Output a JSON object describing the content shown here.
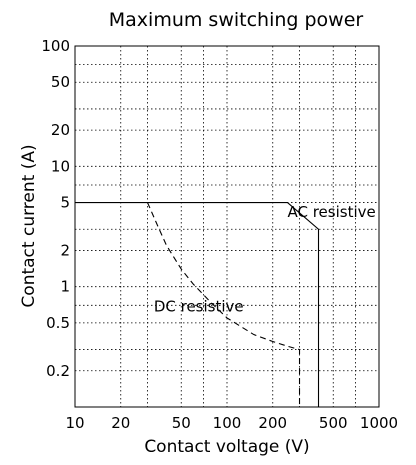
{
  "chart_data": {
    "type": "line",
    "title": "Maximum switching power",
    "xlabel": "Contact voltage (V)",
    "ylabel": "Contact current (A)",
    "xscale": "log",
    "yscale": "log",
    "xlim": [
      10,
      1000
    ],
    "ylim": [
      0.1,
      100
    ],
    "grid": true,
    "x_ticks": [
      {
        "value": 10,
        "label": "10"
      },
      {
        "value": 20,
        "label": "20"
      },
      {
        "value": 50,
        "label": "50"
      },
      {
        "value": 100,
        "label": "100"
      },
      {
        "value": 200,
        "label": "200"
      },
      {
        "value": 500,
        "label": "500"
      },
      {
        "value": 1000,
        "label": "1000"
      }
    ],
    "x_gridlines": [
      20,
      30,
      50,
      70,
      100,
      200,
      300,
      500,
      700
    ],
    "y_ticks": [
      {
        "value": 0.2,
        "label": "0.2"
      },
      {
        "value": 0.5,
        "label": "0.5"
      },
      {
        "value": 1,
        "label": "1"
      },
      {
        "value": 2,
        "label": "2"
      },
      {
        "value": 5,
        "label": "5"
      },
      {
        "value": 10,
        "label": "10"
      },
      {
        "value": 20,
        "label": "20"
      },
      {
        "value": 50,
        "label": "50"
      },
      {
        "value": 100,
        "label": "100"
      }
    ],
    "y_gridlines": [
      0.2,
      0.3,
      0.5,
      0.7,
      1,
      2,
      3,
      5,
      7,
      10,
      20,
      30,
      50,
      70
    ],
    "series": [
      {
        "name": "AC resistive",
        "style": "solid",
        "points": [
          [
            10,
            5
          ],
          [
            250,
            5
          ],
          [
            400,
            3
          ],
          [
            400,
            0.1
          ]
        ]
      },
      {
        "name": "DC resistive",
        "style": "dashed",
        "points": [
          [
            30,
            5
          ],
          [
            35,
            3.2
          ],
          [
            40,
            2.2
          ],
          [
            50,
            1.4
          ],
          [
            60,
            1.05
          ],
          [
            80,
            0.72
          ],
          [
            100,
            0.55
          ],
          [
            150,
            0.4
          ],
          [
            200,
            0.35
          ],
          [
            250,
            0.32
          ],
          [
            300,
            0.3
          ],
          [
            300,
            0.1
          ]
        ]
      }
    ],
    "annotations": [
      {
        "text": "AC resistive",
        "x": 250,
        "y": 3.8
      },
      {
        "text": "DC resistive",
        "x": 33,
        "y": 0.62
      }
    ]
  }
}
